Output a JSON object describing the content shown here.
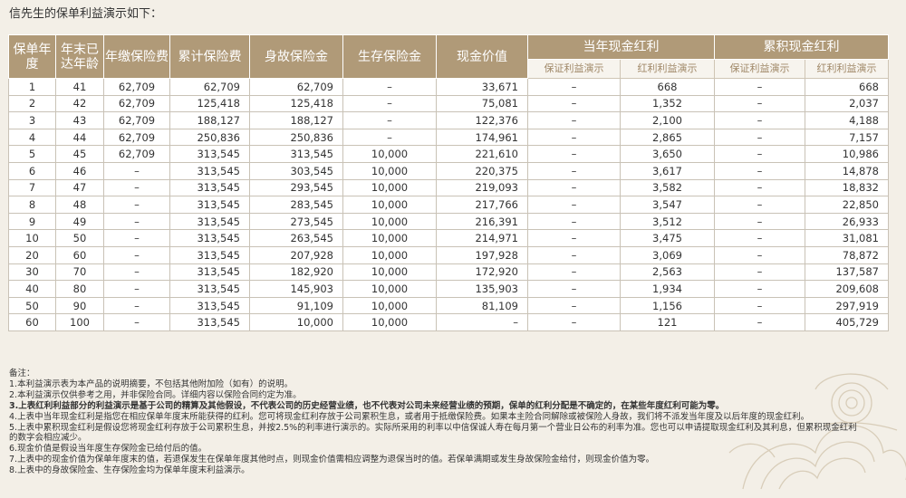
{
  "intro": "信先生的保单利益演示如下：",
  "headers": {
    "year": "保单年度",
    "age": "年末已达年龄",
    "annual_premium": "年缴保险费",
    "cumulative_premium": "累计保险费",
    "death_benefit": "身故保险金",
    "survival_benefit": "生存保险金",
    "cash_value": "现金价值",
    "current_dividend": "当年现金红利",
    "cumulative_dividend": "累积现金红利",
    "guaranteed_demo": "保证利益演示",
    "dividend_demo": "红利利益演示"
  },
  "rows": [
    [
      "1",
      "41",
      "62,709",
      "62,709",
      "62,709",
      "–",
      "33,671",
      "–",
      "668",
      "–",
      "668"
    ],
    [
      "2",
      "42",
      "62,709",
      "125,418",
      "125,418",
      "–",
      "75,081",
      "–",
      "1,352",
      "–",
      "2,037"
    ],
    [
      "3",
      "43",
      "62,709",
      "188,127",
      "188,127",
      "–",
      "122,376",
      "–",
      "2,100",
      "–",
      "4,188"
    ],
    [
      "4",
      "44",
      "62,709",
      "250,836",
      "250,836",
      "–",
      "174,961",
      "–",
      "2,865",
      "–",
      "7,157"
    ],
    [
      "5",
      "45",
      "62,709",
      "313,545",
      "313,545",
      "10,000",
      "221,610",
      "–",
      "3,650",
      "–",
      "10,986"
    ],
    [
      "6",
      "46",
      "–",
      "313,545",
      "303,545",
      "10,000",
      "220,375",
      "–",
      "3,617",
      "–",
      "14,878"
    ],
    [
      "7",
      "47",
      "–",
      "313,545",
      "293,545",
      "10,000",
      "219,093",
      "–",
      "3,582",
      "–",
      "18,832"
    ],
    [
      "8",
      "48",
      "–",
      "313,545",
      "283,545",
      "10,000",
      "217,766",
      "–",
      "3,547",
      "–",
      "22,850"
    ],
    [
      "9",
      "49",
      "–",
      "313,545",
      "273,545",
      "10,000",
      "216,391",
      "–",
      "3,512",
      "–",
      "26,933"
    ],
    [
      "10",
      "50",
      "–",
      "313,545",
      "263,545",
      "10,000",
      "214,971",
      "–",
      "3,475",
      "–",
      "31,081"
    ],
    [
      "20",
      "60",
      "–",
      "313,545",
      "207,928",
      "10,000",
      "197,928",
      "–",
      "3,069",
      "–",
      "78,872"
    ],
    [
      "30",
      "70",
      "–",
      "313,545",
      "182,920",
      "10,000",
      "172,920",
      "–",
      "2,563",
      "–",
      "137,587"
    ],
    [
      "40",
      "80",
      "–",
      "313,545",
      "145,903",
      "10,000",
      "135,903",
      "–",
      "1,934",
      "–",
      "209,608"
    ],
    [
      "50",
      "90",
      "–",
      "313,545",
      "91,109",
      "10,000",
      "81,109",
      "–",
      "1,156",
      "–",
      "297,919"
    ],
    [
      "60",
      "100",
      "–",
      "313,545",
      "10,000",
      "10,000",
      "–",
      "–",
      "121",
      "–",
      "405,729"
    ]
  ],
  "notes_title": "备注：",
  "notes": [
    {
      "text": "1.本利益演示表为本产品的说明摘要，不包括其他附加险（如有）的说明。",
      "bold": ""
    },
    {
      "text": "2.本利益演示仅供参考之用，并非保险合同。详细内容以保险合同约定为准。",
      "bold": ""
    },
    {
      "text": "",
      "bold": "3.上表红利利益部分的利益演示是基于公司的精算及其他假设，不代表公司的历史经营业绩，也不代表对公司未来经营业绩的预期，保单的红利分配是不确定的，在某些年度红利可能为零。"
    },
    {
      "text": "4.上表中当年现金红利是指您在相应保单年度末所能获得的红利。您可将现金红利存放于公司累积生息，或者用于抵缴保险费。如果本主险合同解除或被保险人身故，我们将不派发当年度及以后年度的现金红利。",
      "bold": ""
    },
    {
      "text": "5.上表中累积现金红利是假设您将现金红利存放于公司累积生息，并按2.5%的利率进行演示的。实际所采用的利率以中信保诚人寿在每月第一个营业日公布的利率为准。您也可以申请提取现金红利及其利息，但累积现金红利",
      "bold": ""
    },
    {
      "text": "的数字会相应减少。",
      "bold": ""
    },
    {
      "text": "6.现金价值是假设当年度生存保险金已给付后的值。",
      "bold": ""
    },
    {
      "text": "7.上表中的现金价值为保单年度末的值，若退保发生在保单年度其他时点，则现金价值需相应调整为退保当时的值。若保单满期或发生身故保险金给付，则现金价值为零。",
      "bold": ""
    },
    {
      "text": "8.上表中的身故保险金、生存保险金均为保单年度末利益演示。",
      "bold": ""
    }
  ],
  "colors": {
    "header_bg": "#b09a78",
    "subheader_text": "#a08868",
    "page_bg": "#f3efe7"
  }
}
